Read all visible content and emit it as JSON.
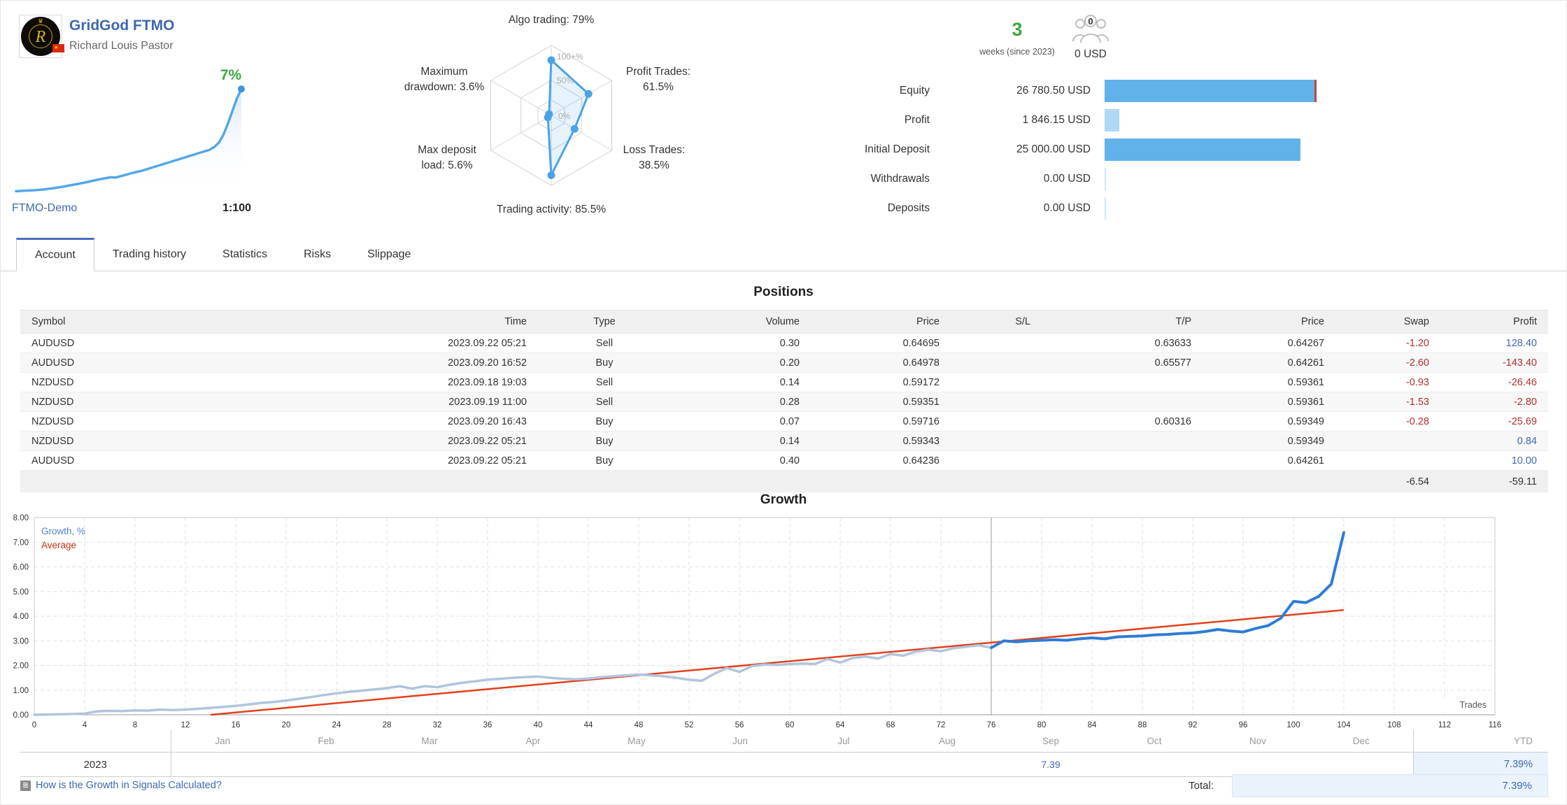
{
  "header": {
    "title": "GridGod FTMO",
    "author": "Richard Louis Pastor",
    "growth_badge": "7%",
    "broker": "FTMO-Demo",
    "leverage": "1:100",
    "weeks_value": "3",
    "weeks_label": "weeks (since 2023)",
    "subscribers_count": "0",
    "subscribers_funds": "0 USD",
    "stats": [
      {
        "label": "Equity",
        "value": "26 780.50 USD",
        "bar_pct": 100,
        "bar_color": "#62b2ea",
        "marker": true
      },
      {
        "label": "Profit",
        "value": "1 846.15 USD",
        "bar_pct": 6.9,
        "bar_color": "#aed9f5",
        "marker": false
      },
      {
        "label": "Initial Deposit",
        "value": "25 000.00 USD",
        "bar_pct": 93.3,
        "bar_color": "#62b2ea",
        "marker": false
      },
      {
        "label": "Withdrawals",
        "value": "0.00 USD",
        "bar_pct": 0.7,
        "bar_color": "#cfe7f8",
        "marker": false
      },
      {
        "label": "Deposits",
        "value": "0.00 USD",
        "bar_pct": 0.7,
        "bar_color": "#cfe7f8",
        "marker": false
      }
    ]
  },
  "tabs": [
    "Account",
    "Trading history",
    "Statistics",
    "Risks",
    "Slippage"
  ],
  "active_tab": "Account",
  "positions": {
    "title": "Positions",
    "headers": [
      "Symbol",
      "Time",
      "Type",
      "Volume",
      "Price",
      "S/L",
      "T/P",
      "Price",
      "Swap",
      "Profit"
    ],
    "rows": [
      [
        "AUDUSD",
        "2023.09.22 05:21",
        "Sell",
        "0.30",
        "0.64695",
        "",
        "0.63633",
        "0.64267",
        "-1.20",
        "128.40"
      ],
      [
        "AUDUSD",
        "2023.09.20 16:52",
        "Buy",
        "0.20",
        "0.64978",
        "",
        "0.65577",
        "0.64261",
        "-2.60",
        "-143.40"
      ],
      [
        "NZDUSD",
        "2023.09.18 19:03",
        "Sell",
        "0.14",
        "0.59172",
        "",
        "",
        "0.59361",
        "-0.93",
        "-26.46"
      ],
      [
        "NZDUSD",
        "2023.09.19 11:00",
        "Sell",
        "0.28",
        "0.59351",
        "",
        "",
        "0.59361",
        "-1.53",
        "-2.80"
      ],
      [
        "NZDUSD",
        "2023.09.20 16:43",
        "Buy",
        "0.07",
        "0.59716",
        "",
        "0.60316",
        "0.59349",
        "-0.28",
        "-25.69"
      ],
      [
        "NZDUSD",
        "2023.09.22 05:21",
        "Buy",
        "0.14",
        "0.59343",
        "",
        "",
        "0.59349",
        "",
        "0.84"
      ],
      [
        "AUDUSD",
        "2023.09.22 05:21",
        "Buy",
        "0.40",
        "0.64236",
        "",
        "",
        "0.64261",
        "",
        "10.00"
      ]
    ],
    "totals": {
      "swap": "-6.54",
      "profit": "-59.11"
    }
  },
  "growth_section": {
    "title": "Growth"
  },
  "growth_table": {
    "year": "2023",
    "months": [
      "Jan",
      "Feb",
      "Mar",
      "Apr",
      "May",
      "Jun",
      "Jul",
      "Aug",
      "Sep",
      "Oct",
      "Nov",
      "Dec"
    ],
    "ytd_label": "YTD",
    "values": [
      "",
      "",
      "",
      "",
      "",
      "",
      "",
      "",
      "7.39",
      "",
      "",
      ""
    ],
    "ytd_value": "7.39%"
  },
  "footer": {
    "help_link": "How is the Growth in Signals Calculated?",
    "total_label": "Total:",
    "total_value": "7.39%"
  },
  "chart_data": [
    {
      "id": "sparkline",
      "type": "area",
      "title": "account growth sparkline",
      "end_label": "7%",
      "end_label_color": "#3fa63f",
      "line_color": "#54a7e6",
      "ylim": [
        0,
        8
      ],
      "points": [
        [
          0,
          0.08
        ],
        [
          4,
          0.12
        ],
        [
          8,
          0.15
        ],
        [
          12,
          0.2
        ],
        [
          16,
          0.28
        ],
        [
          20,
          0.38
        ],
        [
          24,
          0.5
        ],
        [
          28,
          0.62
        ],
        [
          32,
          0.75
        ],
        [
          36,
          0.9
        ],
        [
          40,
          1.02
        ],
        [
          42,
          1.08
        ],
        [
          44,
          1.05
        ],
        [
          48,
          1.22
        ],
        [
          52,
          1.4
        ],
        [
          56,
          1.55
        ],
        [
          60,
          1.75
        ],
        [
          64,
          1.95
        ],
        [
          68,
          2.15
        ],
        [
          72,
          2.35
        ],
        [
          76,
          2.55
        ],
        [
          80,
          2.75
        ],
        [
          84,
          2.95
        ],
        [
          86,
          3.05
        ],
        [
          88,
          3.25
        ],
        [
          90,
          3.55
        ],
        [
          92,
          4.1
        ],
        [
          94,
          4.9
        ],
        [
          96,
          5.8
        ],
        [
          98,
          6.7
        ],
        [
          100,
          7.39
        ]
      ]
    },
    {
      "id": "radar",
      "type": "radar",
      "stroke": "#4aa3e8",
      "rings": [
        "100+%",
        "50%",
        "0%"
      ],
      "axes": [
        {
          "label": "Algo trading: 79%",
          "value": 79
        },
        {
          "label": "Profit Trades:|61.5%",
          "value": 61.5
        },
        {
          "label": "Loss Trades:|38.5%",
          "value": 38.5
        },
        {
          "label": "Trading activity: 85.5%",
          "value": 85.5
        },
        {
          "label": "Max deposit|load: 5.6%",
          "value": 5.6
        },
        {
          "label": "Maximum|drawdown: 3.6%",
          "value": 3.6
        }
      ]
    },
    {
      "id": "growth",
      "type": "line",
      "title": "Growth",
      "xlabel": "Trades",
      "xlim": [
        0,
        116
      ],
      "x_step": 4,
      "ylim": [
        0,
        8
      ],
      "y_step": 1,
      "legend": [
        {
          "name": "Growth, %",
          "color": "#4f86c6"
        },
        {
          "name": "Average",
          "color": "#cc3311"
        }
      ],
      "separator_x": 76,
      "series": [
        {
          "name": "Growth, %",
          "color": "#2e7cd6",
          "faded_color": "#b2c4dd",
          "fade_before_x": 76,
          "points": [
            [
              0,
              0
            ],
            [
              1,
              0.01
            ],
            [
              2,
              0.02
            ],
            [
              3,
              0.03
            ],
            [
              4,
              0.05
            ],
            [
              5,
              0.14
            ],
            [
              6,
              0.16
            ],
            [
              7,
              0.15
            ],
            [
              8,
              0.18
            ],
            [
              9,
              0.17
            ],
            [
              10,
              0.21
            ],
            [
              11,
              0.19
            ],
            [
              12,
              0.21
            ],
            [
              13,
              0.24
            ],
            [
              14,
              0.28
            ],
            [
              15,
              0.32
            ],
            [
              16,
              0.36
            ],
            [
              17,
              0.42
            ],
            [
              18,
              0.48
            ],
            [
              19,
              0.52
            ],
            [
              20,
              0.58
            ],
            [
              21,
              0.65
            ],
            [
              22,
              0.72
            ],
            [
              23,
              0.8
            ],
            [
              24,
              0.87
            ],
            [
              25,
              0.93
            ],
            [
              26,
              0.98
            ],
            [
              27,
              1.03
            ],
            [
              28,
              1.08
            ],
            [
              29,
              1.16
            ],
            [
              30,
              1.06
            ],
            [
              31,
              1.16
            ],
            [
              32,
              1.12
            ],
            [
              33,
              1.22
            ],
            [
              34,
              1.3
            ],
            [
              35,
              1.36
            ],
            [
              36,
              1.42
            ],
            [
              37,
              1.46
            ],
            [
              38,
              1.5
            ],
            [
              39,
              1.53
            ],
            [
              40,
              1.55
            ],
            [
              41,
              1.5
            ],
            [
              42,
              1.46
            ],
            [
              43,
              1.44
            ],
            [
              44,
              1.47
            ],
            [
              45,
              1.52
            ],
            [
              46,
              1.56
            ],
            [
              47,
              1.6
            ],
            [
              48,
              1.63
            ],
            [
              49,
              1.6
            ],
            [
              50,
              1.56
            ],
            [
              51,
              1.5
            ],
            [
              52,
              1.42
            ],
            [
              53,
              1.38
            ],
            [
              54,
              1.66
            ],
            [
              55,
              1.9
            ],
            [
              56,
              1.74
            ],
            [
              57,
              1.98
            ],
            [
              58,
              2.04
            ],
            [
              59,
              2.02
            ],
            [
              60,
              2.06
            ],
            [
              61,
              2.08
            ],
            [
              62,
              2.06
            ],
            [
              63,
              2.26
            ],
            [
              64,
              2.12
            ],
            [
              65,
              2.3
            ],
            [
              66,
              2.36
            ],
            [
              67,
              2.28
            ],
            [
              68,
              2.46
            ],
            [
              69,
              2.4
            ],
            [
              70,
              2.56
            ],
            [
              71,
              2.64
            ],
            [
              72,
              2.58
            ],
            [
              73,
              2.7
            ],
            [
              74,
              2.76
            ],
            [
              75,
              2.82
            ],
            [
              76,
              2.72
            ],
            [
              77,
              3.0
            ],
            [
              78,
              2.96
            ],
            [
              79,
              3.0
            ],
            [
              80,
              3.02
            ],
            [
              81,
              3.04
            ],
            [
              82,
              3.02
            ],
            [
              83,
              3.08
            ],
            [
              84,
              3.12
            ],
            [
              85,
              3.08
            ],
            [
              86,
              3.16
            ],
            [
              87,
              3.18
            ],
            [
              88,
              3.2
            ],
            [
              89,
              3.24
            ],
            [
              90,
              3.26
            ],
            [
              91,
              3.3
            ],
            [
              92,
              3.32
            ],
            [
              93,
              3.38
            ],
            [
              94,
              3.46
            ],
            [
              95,
              3.4
            ],
            [
              96,
              3.36
            ],
            [
              97,
              3.5
            ],
            [
              98,
              3.62
            ],
            [
              99,
              3.92
            ],
            [
              100,
              4.6
            ],
            [
              101,
              4.55
            ],
            [
              102,
              4.8
            ],
            [
              103,
              5.3
            ],
            [
              104,
              7.39
            ]
          ]
        },
        {
          "name": "Average",
          "color": "#e2401c",
          "points": [
            [
              14,
              0
            ],
            [
              104,
              4.25
            ]
          ]
        }
      ]
    }
  ]
}
